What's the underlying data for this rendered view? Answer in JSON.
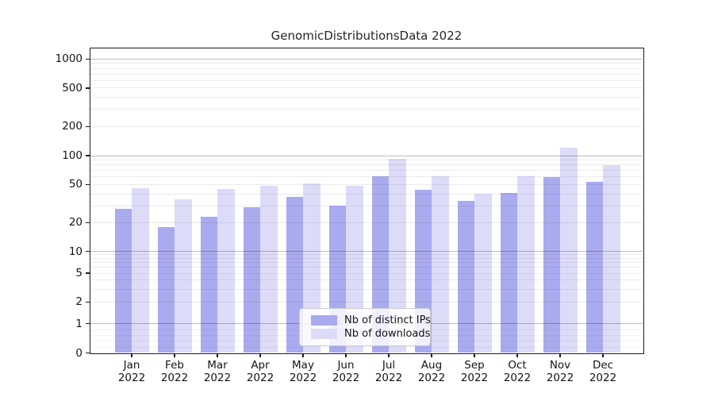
{
  "chart_data": {
    "type": "bar",
    "title": "GenomicDistributionsData 2022",
    "categories": [
      "Jan",
      "Feb",
      "Mar",
      "Apr",
      "May",
      "Jun",
      "Jul",
      "Aug",
      "Sep",
      "Oct",
      "Nov",
      "Dec"
    ],
    "x_year": "2022",
    "series": [
      {
        "name": "Nb of distinct IPs",
        "color": "#aaaaee",
        "values": [
          28,
          18,
          23,
          29,
          37,
          30,
          61,
          44,
          34,
          41,
          60,
          53
        ]
      },
      {
        "name": "Nb of downloads",
        "color": "#dcdcf8",
        "values": [
          46,
          35,
          45,
          48,
          51,
          48,
          92,
          61,
          40,
          61,
          120,
          80
        ]
      }
    ],
    "yscale": "symlog",
    "ytick_labels": [
      "0",
      "1",
      "2",
      "5",
      "10",
      "20",
      "50",
      "100",
      "200",
      "500",
      "1000"
    ],
    "ytick_values": [
      0,
      1,
      2,
      5,
      10,
      20,
      50,
      100,
      200,
      500,
      1000
    ],
    "ylim": [
      0,
      1285
    ],
    "grid": "horizontal log gridlines, minor light + decade dark, drawn over bars",
    "legend_position": "lower center"
  },
  "colors": {
    "bar_ips": "#aaaaee",
    "bar_downloads": "#dcdcf8",
    "axis": "#1c1c1c",
    "text": "#141414",
    "legend_border": "#cccccc"
  }
}
